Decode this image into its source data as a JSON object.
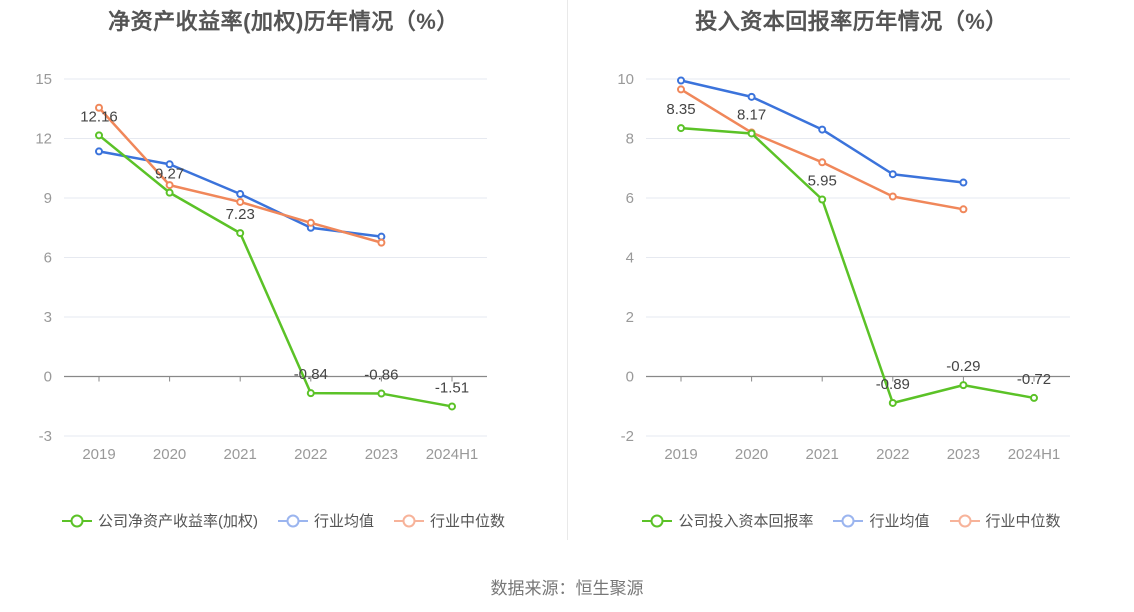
{
  "chart_data": [
    {
      "type": "line",
      "title": "净资产收益率(加权)历年情况（%）",
      "categories": [
        "2019",
        "2020",
        "2021",
        "2022",
        "2023",
        "2024H1"
      ],
      "yticks": [
        "-3",
        "0",
        "3",
        "6",
        "9",
        "12",
        "15"
      ],
      "ylim": [
        -3,
        15
      ],
      "grid": true,
      "legend_position": "bottom",
      "series": [
        {
          "name": "公司净资产收益率(加权)",
          "color": "#5bc227",
          "values": [
            12.16,
            9.27,
            7.23,
            -0.84,
            -0.86,
            -1.51
          ],
          "labels": [
            "12.16",
            "9.27",
            "7.23",
            "-0.84",
            "-0.86",
            "-1.51"
          ]
        },
        {
          "name": "行业均值",
          "color": "#3b73db",
          "values": [
            11.35,
            10.7,
            9.2,
            7.5,
            7.05,
            null
          ],
          "labels": []
        },
        {
          "name": "行业中位数",
          "color": "#f0875a",
          "values": [
            13.55,
            9.65,
            8.8,
            7.75,
            6.75,
            null
          ],
          "labels": []
        }
      ]
    },
    {
      "type": "line",
      "title": "投入资本回报率历年情况（%）",
      "categories": [
        "2019",
        "2020",
        "2021",
        "2022",
        "2023",
        "2024H1"
      ],
      "yticks": [
        "-2",
        "0",
        "2",
        "4",
        "6",
        "8",
        "10"
      ],
      "ylim": [
        -2,
        10
      ],
      "grid": true,
      "legend_position": "bottom",
      "series": [
        {
          "name": "公司投入资本回报率",
          "color": "#5bc227",
          "values": [
            8.35,
            8.17,
            5.95,
            -0.89,
            -0.29,
            -0.72
          ],
          "labels": [
            "8.35",
            "8.17",
            "5.95",
            "-0.89",
            "-0.29",
            "-0.72"
          ]
        },
        {
          "name": "行业均值",
          "color": "#3b73db",
          "values": [
            9.95,
            9.4,
            8.3,
            6.8,
            6.52,
            null
          ],
          "labels": []
        },
        {
          "name": "行业中位数",
          "color": "#f0875a",
          "values": [
            9.65,
            8.2,
            7.2,
            6.05,
            5.62,
            null
          ],
          "labels": []
        }
      ]
    }
  ],
  "legend_colors": {
    "company": "#5bc227",
    "average": "#9bb5ef",
    "median": "#f7b39a"
  },
  "footer": {
    "source": "数据来源：恒生聚源"
  }
}
